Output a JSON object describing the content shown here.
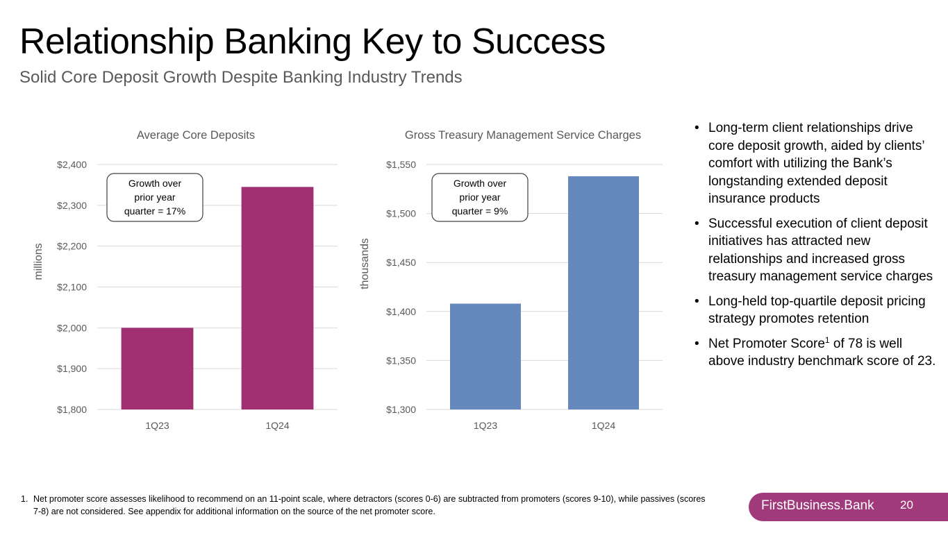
{
  "header": {
    "title": "Relationship Banking Key to Success",
    "subtitle": "Solid Core Deposit Growth Despite Banking Industry Trends"
  },
  "chart_data": [
    {
      "type": "bar",
      "title": "Average Core Deposits",
      "ylabel": "millions",
      "categories": [
        "1Q23",
        "1Q24"
      ],
      "values": [
        2000,
        2345
      ],
      "ylim": [
        1800,
        2400
      ],
      "yticks": [
        "$1,800",
        "$1,900",
        "$2,000",
        "$2,100",
        "$2,200",
        "$2,300",
        "$2,400"
      ],
      "tick_values": [
        1800,
        1900,
        2000,
        2100,
        2200,
        2300,
        2400
      ],
      "color": "#a03072",
      "grid": true,
      "annotation": [
        "Growth over",
        "prior year",
        "quarter = 17%"
      ]
    },
    {
      "type": "bar",
      "title": "Gross Treasury Management Service Charges",
      "ylabel": "thousands",
      "categories": [
        "1Q23",
        "1Q24"
      ],
      "values": [
        1408,
        1538
      ],
      "ylim": [
        1300,
        1550
      ],
      "yticks": [
        "$1,300",
        "$1,350",
        "$1,400",
        "$1,450",
        "$1,500",
        "$1,550"
      ],
      "tick_values": [
        1300,
        1350,
        1400,
        1450,
        1500,
        1550
      ],
      "color": "#6589bd",
      "grid": true,
      "annotation": [
        "Growth over",
        "prior year",
        "quarter = 9%"
      ]
    }
  ],
  "bullets": [
    {
      "text": "Long-term client relationships drive core deposit growth, aided by clients’ comfort with utilizing the Bank’s longstanding extended deposit insurance products"
    },
    {
      "text": "Successful execution of client deposit initiatives has attracted new relationships and increased gross treasury management service charges"
    },
    {
      "text": "Long-held top-quartile deposit pricing strategy promotes retention"
    },
    {
      "pre": "Net Promoter Score",
      "sup": "1",
      "post": " of 78 is well above industry benchmark score of 23."
    }
  ],
  "bullet_symbol": "•",
  "footnote": {
    "number": "1.",
    "text": "Net promoter score assesses likelihood to recommend on an 11-point scale, where detractors (scores 0-6) are subtracted from promoters (scores 9-10), while passives (scores 7-8) are not considered. See appendix for additional information on the source of the net promoter score."
  },
  "brand": {
    "name": "FirstBusiness.Bank",
    "page_number": "20",
    "color": "#a03a7a"
  }
}
